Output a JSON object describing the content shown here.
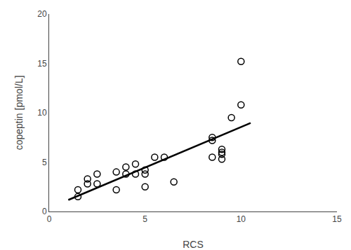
{
  "chart_data": {
    "type": "scatter",
    "xlabel": "RCS",
    "ylabel": "copeptin [pmol/L]",
    "xlim": [
      0,
      15
    ],
    "ylim": [
      0,
      20
    ],
    "xticks": [
      0,
      5,
      10,
      15
    ],
    "yticks": [
      0,
      5,
      10,
      15,
      20
    ],
    "grid": false,
    "series": [
      {
        "type": "scatter",
        "marker": "open circle",
        "color": "black",
        "x": [
          1.5,
          1.5,
          2.0,
          2.0,
          2.5,
          2.5,
          3.5,
          3.5,
          4.0,
          4.0,
          4.5,
          4.5,
          5.0,
          5.0,
          5.0,
          5.5,
          6.0,
          6.5,
          8.5,
          8.5,
          8.5,
          9.0,
          9.0,
          9.0,
          9.0,
          9.5,
          10.0,
          10.0
        ],
        "values": [
          2.2,
          1.5,
          3.3,
          2.8,
          3.8,
          2.8,
          4.0,
          2.2,
          4.5,
          3.8,
          4.8,
          3.8,
          4.2,
          3.8,
          2.5,
          5.5,
          5.5,
          3.0,
          7.5,
          7.2,
          5.5,
          6.3,
          6.0,
          5.8,
          5.3,
          9.5,
          10.8,
          15.2
        ]
      },
      {
        "type": "line",
        "line_style": "solid",
        "color": "black",
        "x": [
          1.0,
          10.5
        ],
        "values": [
          1.17,
          8.96
        ]
      }
    ]
  }
}
